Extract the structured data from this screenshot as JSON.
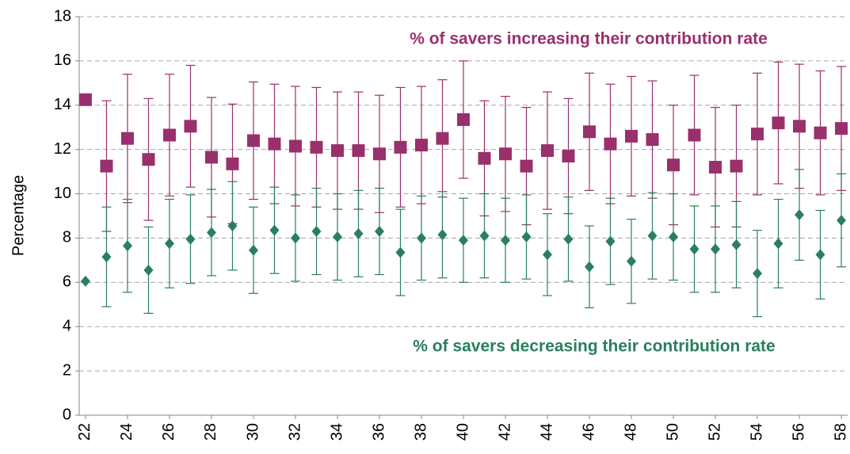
{
  "chart_data": {
    "type": "errorbar-scatter",
    "y_label": "Percentage",
    "x": [
      22,
      23,
      24,
      25,
      26,
      27,
      28,
      29,
      30,
      31,
      32,
      33,
      34,
      35,
      36,
      37,
      38,
      39,
      40,
      41,
      42,
      43,
      44,
      45,
      46,
      47,
      48,
      49,
      50,
      51,
      52,
      53,
      54,
      55,
      56,
      57,
      58
    ],
    "xlim": [
      21.7,
      58.3
    ],
    "xticks": [
      22,
      24,
      26,
      28,
      30,
      32,
      34,
      36,
      38,
      40,
      42,
      44,
      46,
      48,
      50,
      52,
      54,
      56,
      58
    ],
    "ylim": [
      0,
      18
    ],
    "yticks": [
      0,
      2,
      4,
      6,
      8,
      10,
      12,
      14,
      16,
      18
    ],
    "grid": true,
    "series": [
      {
        "name": "% of savers increasing their contribution rate",
        "color": "#99306b",
        "marker": "square",
        "values": [
          14.25,
          11.25,
          12.5,
          11.55,
          12.65,
          13.05,
          11.65,
          11.35,
          12.4,
          12.25,
          12.15,
          12.1,
          11.95,
          11.95,
          11.8,
          12.1,
          12.2,
          12.5,
          13.35,
          11.6,
          11.8,
          11.25,
          11.95,
          11.7,
          12.8,
          12.25,
          12.6,
          12.45,
          11.3,
          12.65,
          11.2,
          11.25,
          12.7,
          13.2,
          13.05,
          12.75,
          12.95
        ],
        "errors": [
          null,
          2.95,
          2.9,
          2.75,
          2.75,
          2.75,
          2.7,
          2.7,
          2.65,
          2.7,
          2.7,
          2.7,
          2.65,
          2.65,
          2.65,
          2.7,
          2.65,
          2.65,
          2.65,
          2.6,
          2.6,
          2.65,
          2.65,
          2.6,
          2.65,
          2.7,
          2.7,
          2.65,
          2.7,
          2.7,
          2.7,
          2.75,
          2.75,
          2.75,
          2.8,
          2.8,
          2.8
        ]
      },
      {
        "name": "% of savers decreasing their contribution rate",
        "color": "#2a7f5c",
        "marker": "diamond",
        "values": [
          6.05,
          7.15,
          7.65,
          6.55,
          7.75,
          7.95,
          8.25,
          8.55,
          7.45,
          8.35,
          8.0,
          8.3,
          8.05,
          8.2,
          8.3,
          7.35,
          8.0,
          8.15,
          7.9,
          8.1,
          7.9,
          8.05,
          7.25,
          7.95,
          6.7,
          7.85,
          6.95,
          8.1,
          8.05,
          7.5,
          7.5,
          7.7,
          6.4,
          7.75,
          9.05,
          7.25,
          8.8
        ],
        "errors": [
          null,
          2.25,
          2.1,
          1.95,
          2.0,
          2.0,
          1.95,
          2.0,
          1.95,
          1.95,
          1.95,
          1.95,
          1.95,
          1.95,
          1.95,
          1.95,
          1.9,
          1.95,
          1.9,
          1.9,
          1.9,
          1.9,
          1.85,
          1.9,
          1.85,
          1.95,
          1.9,
          1.95,
          1.95,
          1.95,
          1.95,
          1.95,
          1.95,
          2.0,
          2.05,
          2.0,
          2.1
        ]
      }
    ]
  }
}
